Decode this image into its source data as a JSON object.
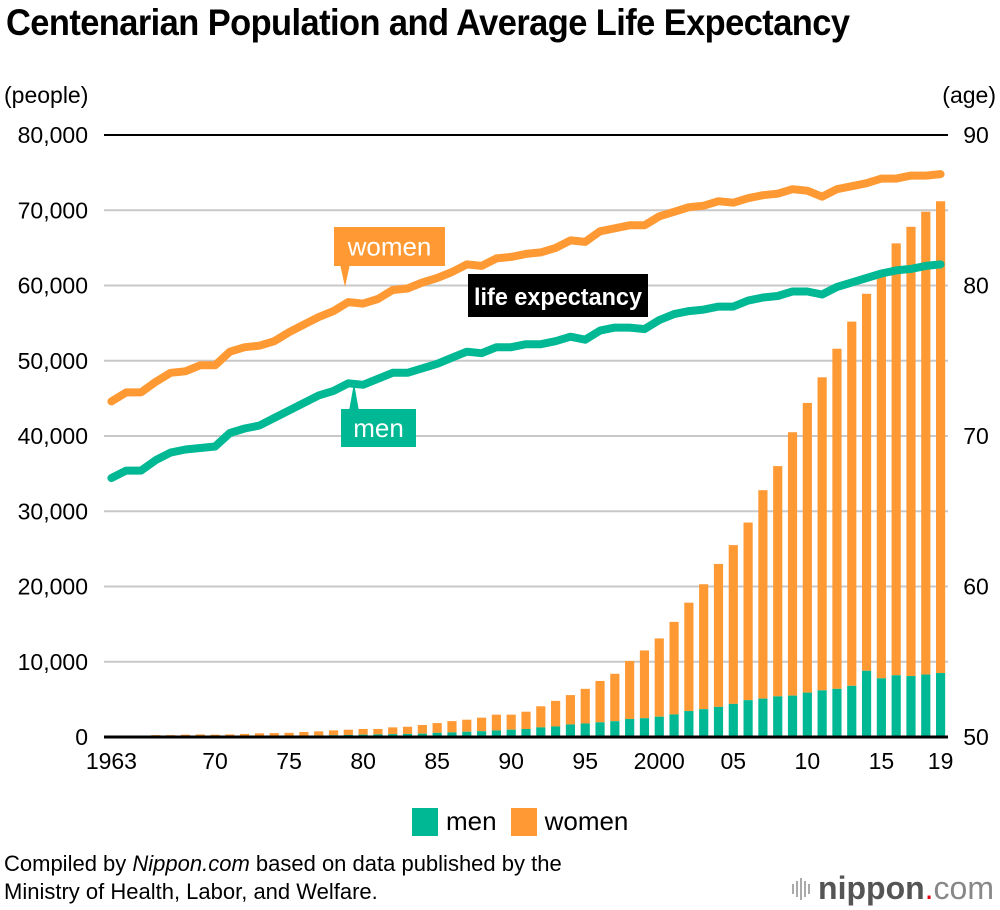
{
  "chart_data": {
    "type": "bar+line",
    "title": "Centenarian Population and Average Life Expectancy",
    "ylabel_left": "(people)",
    "ylabel_right": "(age)",
    "ylim_left": [
      0,
      80000
    ],
    "ylim_right": [
      50,
      90
    ],
    "yticks_left": [
      "0",
      "10,000",
      "20,000",
      "30,000",
      "40,000",
      "50,000",
      "60,000",
      "70,000",
      "80,000"
    ],
    "yticks_right": [
      "50",
      "60",
      "70",
      "80",
      "90"
    ],
    "xtick_labels": [
      {
        "year": 1963,
        "label": "1963"
      },
      {
        "year": 1970,
        "label": "70"
      },
      {
        "year": 1975,
        "label": "75"
      },
      {
        "year": 1980,
        "label": "80"
      },
      {
        "year": 1985,
        "label": "85"
      },
      {
        "year": 1990,
        "label": "90"
      },
      {
        "year": 1995,
        "label": "95"
      },
      {
        "year": 2000,
        "label": "2000"
      },
      {
        "year": 2005,
        "label": "05"
      },
      {
        "year": 2010,
        "label": "10"
      },
      {
        "year": 2015,
        "label": "15"
      },
      {
        "year": 2019,
        "label": "19"
      }
    ],
    "grid": true,
    "legend_position": "bottom-center",
    "x": [
      1963,
      1964,
      1965,
      1966,
      1967,
      1968,
      1969,
      1970,
      1971,
      1972,
      1973,
      1974,
      1975,
      1976,
      1977,
      1978,
      1979,
      1980,
      1981,
      1982,
      1983,
      1984,
      1985,
      1986,
      1987,
      1988,
      1989,
      1990,
      1991,
      1992,
      1993,
      1994,
      1995,
      1996,
      1997,
      1998,
      1999,
      2000,
      2001,
      2002,
      2003,
      2004,
      2005,
      2006,
      2007,
      2008,
      2009,
      2010,
      2011,
      2012,
      2013,
      2014,
      2015,
      2016,
      2017,
      2018,
      2019
    ],
    "bar_series": [
      {
        "name": "men",
        "color": "#00b894",
        "values": [
          20,
          30,
          40,
          50,
          50,
          60,
          70,
          80,
          90,
          110,
          130,
          140,
          160,
          190,
          210,
          240,
          270,
          310,
          350,
          380,
          410,
          450,
          550,
          610,
          700,
          770,
          870,
          970,
          1060,
          1280,
          1400,
          1670,
          1800,
          1950,
          2100,
          2400,
          2500,
          2700,
          3000,
          3450,
          3700,
          4000,
          4400,
          4900,
          5100,
          5400,
          5500,
          5900,
          6200,
          6400,
          6800,
          8800,
          7800,
          8200,
          8100,
          8300,
          8500
        ]
      },
      {
        "name": "women",
        "color": "#ff9933",
        "values": [
          130,
          160,
          150,
          200,
          200,
          250,
          270,
          230,
          250,
          300,
          360,
          380,
          390,
          480,
          540,
          640,
          700,
          760,
          720,
          900,
          950,
          1140,
          1300,
          1500,
          1600,
          1800,
          2100,
          2000,
          2300,
          2800,
          3400,
          3900,
          4600,
          5500,
          6300,
          7700,
          9000,
          10400,
          12300,
          14400,
          16600,
          19000,
          21100,
          23600,
          27700,
          30600,
          35000,
          38500,
          41600,
          45200,
          48400,
          50100,
          53800,
          57400,
          59700,
          61500,
          62700
        ]
      }
    ],
    "line_series": [
      {
        "name": "men",
        "label": "men",
        "color": "#00b894",
        "values": [
          67.2,
          67.7,
          67.7,
          68.4,
          68.9,
          69.1,
          69.2,
          69.3,
          70.2,
          70.5,
          70.7,
          71.2,
          71.7,
          72.2,
          72.7,
          73.0,
          73.5,
          73.4,
          73.8,
          74.2,
          74.2,
          74.5,
          74.8,
          75.2,
          75.6,
          75.5,
          75.9,
          75.9,
          76.1,
          76.1,
          76.3,
          76.6,
          76.4,
          77.0,
          77.2,
          77.2,
          77.1,
          77.7,
          78.1,
          78.3,
          78.4,
          78.6,
          78.6,
          79.0,
          79.2,
          79.3,
          79.6,
          79.6,
          79.4,
          79.9,
          80.2,
          80.5,
          80.8,
          81.0,
          81.1,
          81.3,
          81.4
        ]
      },
      {
        "name": "women",
        "label": "women",
        "color": "#ff9933",
        "values": [
          72.3,
          72.9,
          72.9,
          73.6,
          74.2,
          74.3,
          74.7,
          74.7,
          75.6,
          75.9,
          76.0,
          76.3,
          76.9,
          77.4,
          77.9,
          78.3,
          78.9,
          78.8,
          79.1,
          79.7,
          79.8,
          80.2,
          80.5,
          80.9,
          81.4,
          81.3,
          81.8,
          81.9,
          82.1,
          82.2,
          82.5,
          83.0,
          82.9,
          83.6,
          83.8,
          84.0,
          84.0,
          84.6,
          84.9,
          85.2,
          85.3,
          85.6,
          85.5,
          85.8,
          86.0,
          86.1,
          86.4,
          86.3,
          85.9,
          86.4,
          86.6,
          86.8,
          87.1,
          87.1,
          87.3,
          87.3,
          87.4
        ]
      }
    ],
    "annotations": [
      "women",
      "men",
      "life expectancy"
    ]
  },
  "legend": {
    "items": [
      {
        "label": "men",
        "color": "#00b894"
      },
      {
        "label": "women",
        "color": "#ff9933"
      }
    ]
  },
  "source": {
    "prefix": "Compiled by ",
    "site": "Nippon.com",
    "suffix": " based on data published by the",
    "line2": "Ministry of Health, Labor, and Welfare."
  },
  "logo": {
    "main": "nippon",
    "dot": ".",
    "tld": "com"
  }
}
